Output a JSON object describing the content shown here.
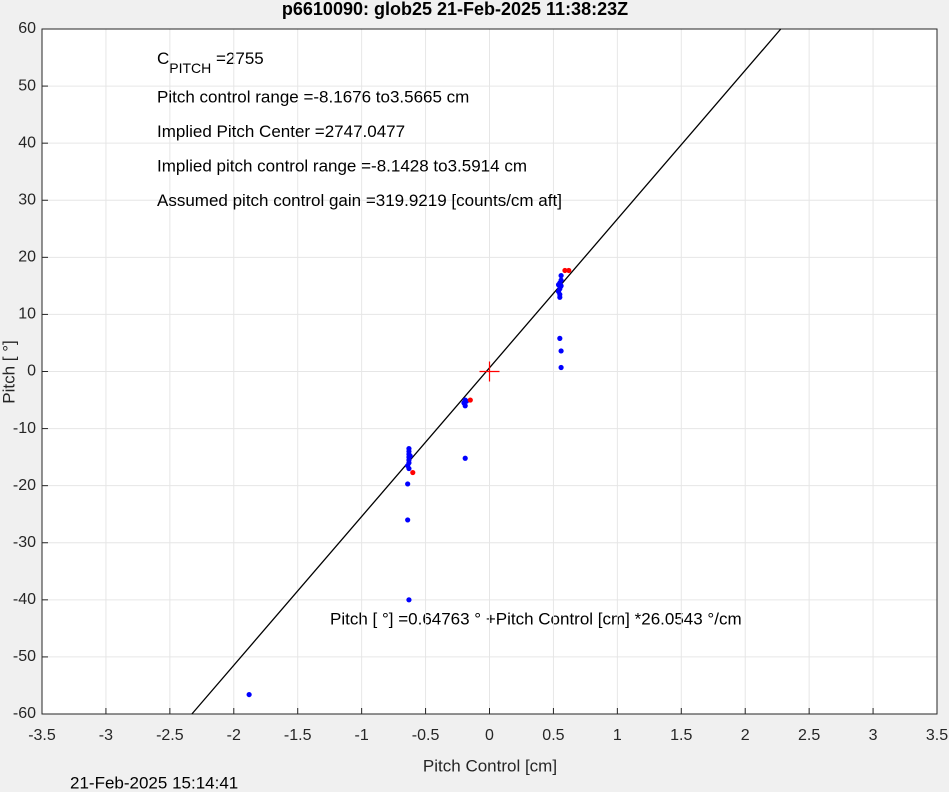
{
  "chart_data": {
    "type": "scatter",
    "title": "p6610090: glob25 21-Feb-2025 11:38:23Z",
    "x_label": "Pitch Control [cm]",
    "y_label": "Pitch [  °]",
    "xlim": [
      -3.5,
      3.5
    ],
    "ylim": [
      -60,
      60
    ],
    "xticks": [
      -3.5,
      -3,
      -2.5,
      -2,
      -1.5,
      -1,
      -0.5,
      0,
      0.5,
      1,
      1.5,
      2,
      2.5,
      3,
      3.5
    ],
    "yticks": [
      -60,
      -50,
      -40,
      -30,
      -20,
      -10,
      0,
      10,
      20,
      30,
      40,
      50,
      60
    ],
    "grid": true,
    "c_pitch": {
      "base": "C",
      "sub": "PITCH",
      "rest": " =2755"
    },
    "annotations": [
      "Pitch control range =-8.1676 to3.5665 cm",
      "Implied Pitch Center =2747.0477",
      "Implied pitch control range =-8.1428 to3.5914 cm",
      "Assumed pitch control gain =319.9219 [counts/cm aft]"
    ],
    "fit_text": "Pitch [  °] =0.64763     ° +Pitch Control [cm] *26.0543       °/cm",
    "fit_line": {
      "intercept": 0.64763,
      "slope": 26.0543,
      "color": "#000000"
    },
    "footer": "21-Feb-2025 15:14:41",
    "series": [
      {
        "color": "#0000ff",
        "marker": "dot",
        "x": [
          -0.63,
          -0.63,
          -0.63,
          -0.63,
          -0.63,
          -0.63,
          -0.64,
          -0.63,
          -0.62,
          -0.64,
          -0.64,
          -0.63,
          -0.19,
          -0.2,
          -0.19,
          -0.18,
          -0.19,
          0.55,
          0.55,
          0.54,
          0.55,
          0.56,
          0.55,
          0.56,
          0.56,
          0.54,
          0.55,
          0.56,
          0.56,
          -1.88
        ],
        "values": [
          -13.5,
          -14,
          -14.5,
          -15,
          -15.5,
          -16,
          -16.5,
          -17,
          -14.8,
          -19.7,
          -26,
          -40,
          -5,
          -5.5,
          -6,
          -5.2,
          -15.2,
          13,
          13.5,
          14,
          14.5,
          15,
          15.5,
          16,
          16.8,
          15.2,
          5.8,
          3.6,
          0.7,
          -56.6
        ]
      },
      {
        "color": "#ff0000",
        "marker": "dot",
        "x": [
          -0.6,
          -0.15,
          0.59,
          0.62
        ],
        "values": [
          -17.7,
          -5,
          17.7,
          17.7
        ]
      },
      {
        "color": "#ff0000",
        "marker": "plus",
        "x": [
          0
        ],
        "values": [
          0
        ]
      }
    ]
  }
}
